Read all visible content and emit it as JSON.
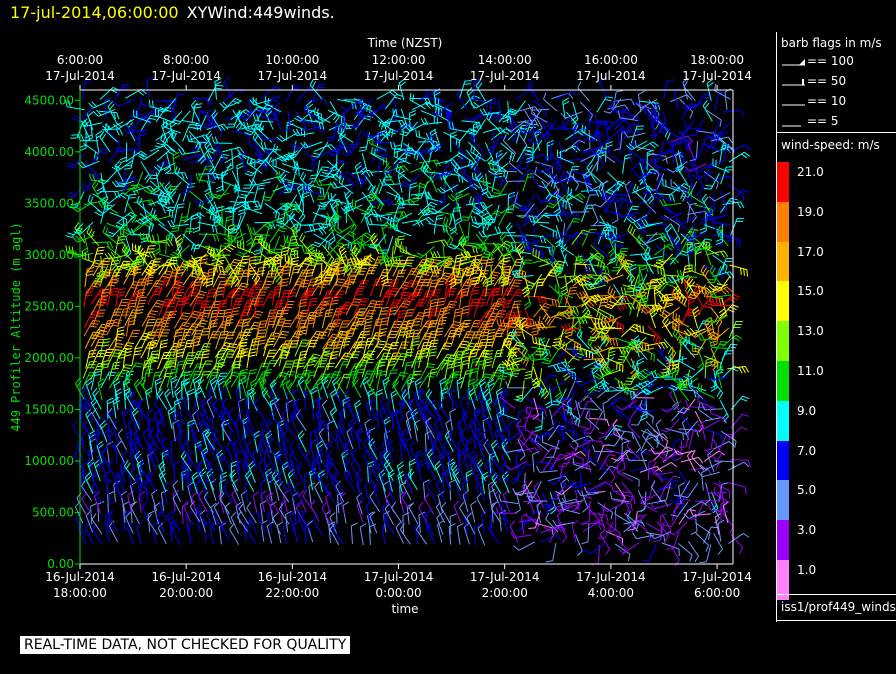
{
  "header": {
    "time": "17-jul-2014,06:00:00",
    "name": "XYWind:449winds."
  },
  "chart_data": {
    "type": "wind-barb",
    "top_axis_title": "Time (NZST)",
    "top_ticks": [
      {
        "time": "6:00:00",
        "date": "17-Jul-2014"
      },
      {
        "time": "8:00:00",
        "date": "17-Jul-2014"
      },
      {
        "time": "10:00:00",
        "date": "17-Jul-2014"
      },
      {
        "time": "12:00:00",
        "date": "17-Jul-2014"
      },
      {
        "time": "14:00:00",
        "date": "17-Jul-2014"
      },
      {
        "time": "16:00:00",
        "date": "17-Jul-2014"
      },
      {
        "time": "18:00:00",
        "date": "17-Jul-2014"
      }
    ],
    "bottom_axis_title": "time",
    "bottom_ticks": [
      {
        "date": "16-Jul-2014",
        "time": "18:00:00"
      },
      {
        "date": "16-Jul-2014",
        "time": "20:00:00"
      },
      {
        "date": "16-Jul-2014",
        "time": "22:00:00"
      },
      {
        "date": "17-Jul-2014",
        "time": "0:00:00"
      },
      {
        "date": "17-Jul-2014",
        "time": "2:00:00"
      },
      {
        "date": "17-Jul-2014",
        "time": "4:00:00"
      },
      {
        "date": "17-Jul-2014",
        "time": "6:00:00"
      }
    ],
    "x_range_hours": [
      0,
      12.3
    ],
    "ylabel": "449 Profiler Altitude (m agl)",
    "y_ticks": [
      "0.00",
      "500.00",
      "1000.00",
      "1500.00",
      "2000.00",
      "2500.00",
      "3000.00",
      "3500.00",
      "4000.00",
      "4500.00"
    ],
    "ylim": [
      0,
      4600
    ],
    "speed_profile": [
      {
        "alt": 300,
        "speed": 6
      },
      {
        "alt": 500,
        "speed": 4
      },
      {
        "alt": 700,
        "speed": 8
      },
      {
        "alt": 1000,
        "speed": 7
      },
      {
        "alt": 1400,
        "speed": 7
      },
      {
        "alt": 1700,
        "speed": 11
      },
      {
        "alt": 1900,
        "speed": 14
      },
      {
        "alt": 2200,
        "speed": 18
      },
      {
        "alt": 2500,
        "speed": 21
      },
      {
        "alt": 2800,
        "speed": 16
      },
      {
        "alt": 3200,
        "speed": 10
      },
      {
        "alt": 3700,
        "speed": 9
      },
      {
        "alt": 4500,
        "speed": 8
      }
    ],
    "columns": {
      "count": 80,
      "levels": 45,
      "alt_start": 200,
      "alt_step": 100
    }
  },
  "legend": {
    "barb_title": "barb flags in m/s",
    "barbs": [
      "== 100",
      "== 50",
      "== 10",
      "== 5"
    ],
    "speed_title": "wind-speed: m/s",
    "speed_scale": [
      {
        "label": "21.0",
        "color": "#ff0000"
      },
      {
        "label": "19.0",
        "color": "#ff7f00"
      },
      {
        "label": "17.0",
        "color": "#ffb000"
      },
      {
        "label": "15.0",
        "color": "#ffff00"
      },
      {
        "label": "13.0",
        "color": "#80ff00"
      },
      {
        "label": "11.0",
        "color": "#00e000"
      },
      {
        "label": "9.0",
        "color": "#00ffff"
      },
      {
        "label": "7.0",
        "color": "#0000ff"
      },
      {
        "label": "5.0",
        "color": "#6699ff"
      },
      {
        "label": "3.0",
        "color": "#9900ff"
      },
      {
        "label": "1.0",
        "color": "#ff80ff"
      }
    ],
    "source": "iss1/prof449_winds"
  },
  "footer": {
    "warning": "REAL-TIME DATA, NOT CHECKED FOR QUALITY"
  }
}
